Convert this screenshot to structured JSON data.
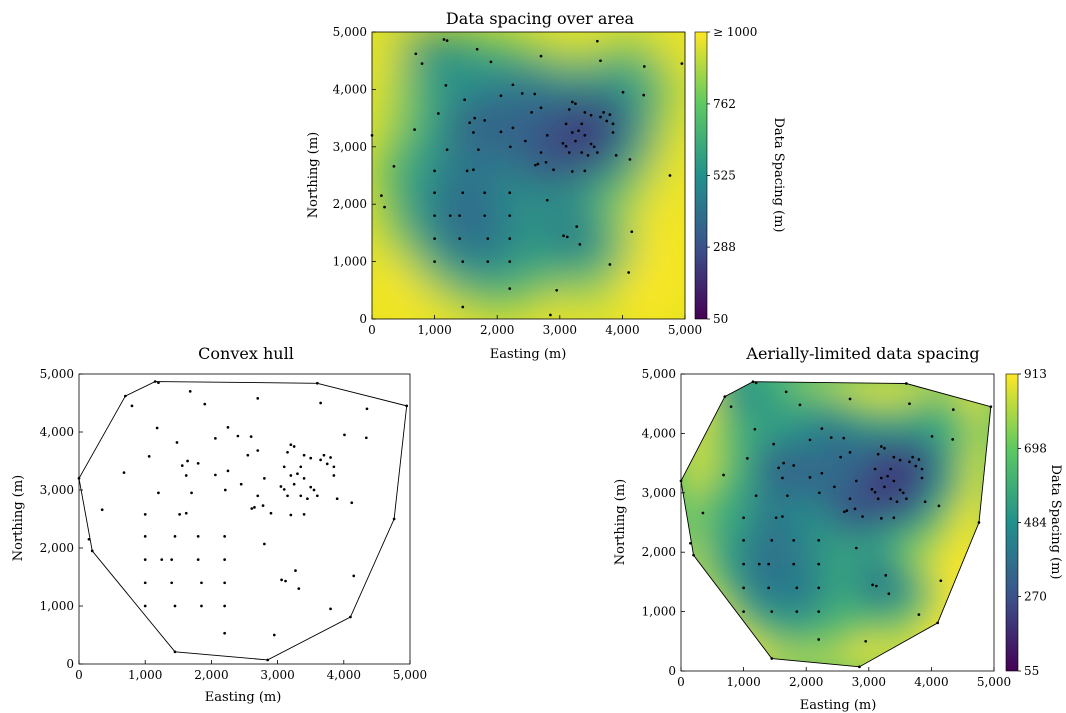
{
  "chart_data": [
    {
      "type": "heatmap",
      "title": "Data spacing over area",
      "xlabel": "Easting (m)",
      "ylabel": "Northing (m)",
      "xlim": [
        0,
        5000
      ],
      "ylim": [
        0,
        5000
      ],
      "x_ticks": [
        "0",
        "1,000",
        "2,000",
        "3,000",
        "4,000",
        "5,000"
      ],
      "y_ticks": [
        "0",
        "1,000",
        "2,000",
        "3,000",
        "4,000",
        "5,000"
      ],
      "colorbar": {
        "label": "Data Spacing (m)",
        "range": [
          50,
          1000
        ],
        "ticks": [
          "50",
          "288",
          "525",
          "762",
          "≥  1000"
        ],
        "tick_values": [
          50,
          288,
          525,
          762,
          1000
        ],
        "colormap": "viridis"
      },
      "masked_to_hull": false
    },
    {
      "type": "scatter",
      "title": "Convex hull",
      "xlabel": "Easting (m)",
      "ylabel": "Northing (m)",
      "xlim": [
        0,
        5000
      ],
      "ylim": [
        0,
        5000
      ],
      "x_ticks": [
        "0",
        "1,000",
        "2,000",
        "3,000",
        "4,000",
        "5,000"
      ],
      "y_ticks": [
        "0",
        "1,000",
        "2,000",
        "3,000",
        "4,000",
        "5,000"
      ],
      "hull": [
        [
          1150,
          4870
        ],
        [
          3600,
          4840
        ],
        [
          4950,
          4450
        ],
        [
          4760,
          2500
        ],
        [
          4100,
          810
        ],
        [
          2850,
          70
        ],
        [
          1450,
          210
        ],
        [
          200,
          1950
        ],
        [
          0,
          3200
        ],
        [
          700,
          4620
        ]
      ]
    },
    {
      "type": "heatmap",
      "title": "Aerially-limited data spacing",
      "xlabel": "Easting (m)",
      "ylabel": "Northing (m)",
      "xlim": [
        0,
        5000
      ],
      "ylim": [
        0,
        5000
      ],
      "x_ticks": [
        "0",
        "1,000",
        "2,000",
        "3,000",
        "4,000",
        "5,000"
      ],
      "y_ticks": [
        "0",
        "1,000",
        "2,000",
        "3,000",
        "4,000",
        "5,000"
      ],
      "colorbar": {
        "label": "Data Spacing (m)",
        "range": [
          55,
          913
        ],
        "ticks": [
          "55",
          "270",
          "484",
          "698",
          "913"
        ],
        "tick_values": [
          55,
          270,
          484,
          698,
          913
        ],
        "colormap": "viridis"
      },
      "masked_to_hull": true
    }
  ],
  "samples": [
    [
      1150,
      4870
    ],
    [
      3600,
      4840
    ],
    [
      4950,
      4450
    ],
    [
      4760,
      2500
    ],
    [
      4100,
      810
    ],
    [
      2850,
      70
    ],
    [
      1450,
      210
    ],
    [
      200,
      1950
    ],
    [
      0,
      3200
    ],
    [
      700,
      4620
    ],
    [
      800,
      4450
    ],
    [
      1200,
      4850
    ],
    [
      1680,
      4700
    ],
    [
      1900,
      4480
    ],
    [
      2700,
      4580
    ],
    [
      3650,
      4500
    ],
    [
      4350,
      4400
    ],
    [
      4340,
      3900
    ],
    [
      1180,
      4070
    ],
    [
      680,
      3300
    ],
    [
      1060,
      3580
    ],
    [
      1200,
      2950
    ],
    [
      1000,
      2580
    ],
    [
      350,
      2660
    ],
    [
      150,
      2150
    ],
    [
      2800,
      2070
    ],
    [
      1480,
      3820
    ],
    [
      1640,
      3500
    ],
    [
      1560,
      3420
    ],
    [
      1620,
      3250
    ],
    [
      1700,
      2950
    ],
    [
      1620,
      2600
    ],
    [
      1520,
      2580
    ],
    [
      1800,
      3460
    ],
    [
      2060,
      3260
    ],
    [
      2210,
      3000
    ],
    [
      2060,
      3890
    ],
    [
      2250,
      4080
    ],
    [
      2400,
      3930
    ],
    [
      2600,
      3920
    ],
    [
      2250,
      3330
    ],
    [
      2450,
      3100
    ],
    [
      2550,
      3600
    ],
    [
      2700,
      3680
    ],
    [
      2800,
      3200
    ],
    [
      2700,
      2900
    ],
    [
      2780,
      2730
    ],
    [
      2900,
      2600
    ],
    [
      2610,
      2680
    ],
    [
      2650,
      2700
    ],
    [
      3100,
      3010
    ],
    [
      3150,
      2900
    ],
    [
      3250,
      3100
    ],
    [
      3200,
      3250
    ],
    [
      3300,
      3280
    ],
    [
      3400,
      3200
    ],
    [
      3500,
      3050
    ],
    [
      3550,
      3000
    ],
    [
      3350,
      2900
    ],
    [
      3450,
      2850
    ],
    [
      3600,
      2900
    ],
    [
      3150,
      3650
    ],
    [
      3200,
      3780
    ],
    [
      3250,
      3750
    ],
    [
      3400,
      3600
    ],
    [
      3500,
      3550
    ],
    [
      3650,
      3520
    ],
    [
      3700,
      3600
    ],
    [
      3750,
      3450
    ],
    [
      3800,
      3560
    ],
    [
      3850,
      3400
    ],
    [
      3850,
      3250
    ],
    [
      4010,
      3950
    ],
    [
      4120,
      2780
    ],
    [
      3900,
      2850
    ],
    [
      3400,
      2580
    ],
    [
      3200,
      2570
    ],
    [
      3050,
      3060
    ],
    [
      3100,
      3400
    ],
    [
      3350,
      3400
    ],
    [
      1000,
      2200
    ],
    [
      1000,
      1800
    ],
    [
      1000,
      1400
    ],
    [
      1000,
      1000
    ],
    [
      1450,
      2200
    ],
    [
      1400,
      1800
    ],
    [
      1400,
      1400
    ],
    [
      1450,
      1000
    ],
    [
      1800,
      2200
    ],
    [
      1800,
      1800
    ],
    [
      1850,
      1400
    ],
    [
      1850,
      1000
    ],
    [
      2200,
      2200
    ],
    [
      2200,
      1800
    ],
    [
      2200,
      1400
    ],
    [
      2200,
      1000
    ],
    [
      2200,
      530
    ],
    [
      1250,
      1800
    ],
    [
      3060,
      1450
    ],
    [
      3120,
      1430
    ],
    [
      3270,
      1610
    ],
    [
      3320,
      1300
    ],
    [
      3800,
      950
    ],
    [
      4150,
      1520
    ],
    [
      2950,
      500
    ]
  ],
  "dot_color": "#000000",
  "hull_color": "#000000"
}
